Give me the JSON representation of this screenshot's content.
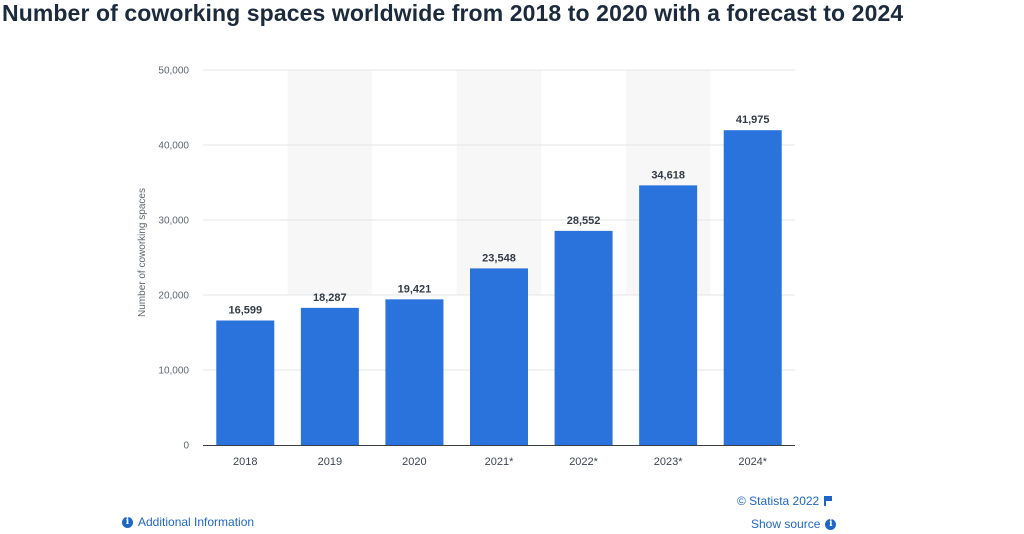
{
  "chart_data": {
    "type": "bar",
    "title": "Number of coworking spaces worldwide from 2018 to 2020 with a forecast to 2024",
    "ylabel": "Number of coworking spaces",
    "xlabel": "",
    "categories": [
      "2018",
      "2019",
      "2020",
      "2021*",
      "2022*",
      "2023*",
      "2024*"
    ],
    "values": [
      16599,
      18287,
      19421,
      23548,
      28552,
      34618,
      41975
    ],
    "value_labels": [
      "16,599",
      "18,287",
      "19,421",
      "23,548",
      "28,552",
      "34,618",
      "41,975"
    ],
    "ylim": [
      0,
      50000
    ],
    "yticks": [
      0,
      10000,
      20000,
      30000,
      40000,
      50000
    ],
    "ytick_labels": [
      "0",
      "10,000",
      "20,000",
      "30,000",
      "40,000",
      "50,000"
    ],
    "grid": true,
    "bar_color": "#2a73dc"
  },
  "footer": {
    "additional_info": "Additional Information",
    "credit": "© Statista 2022",
    "show_source": "Show source"
  }
}
